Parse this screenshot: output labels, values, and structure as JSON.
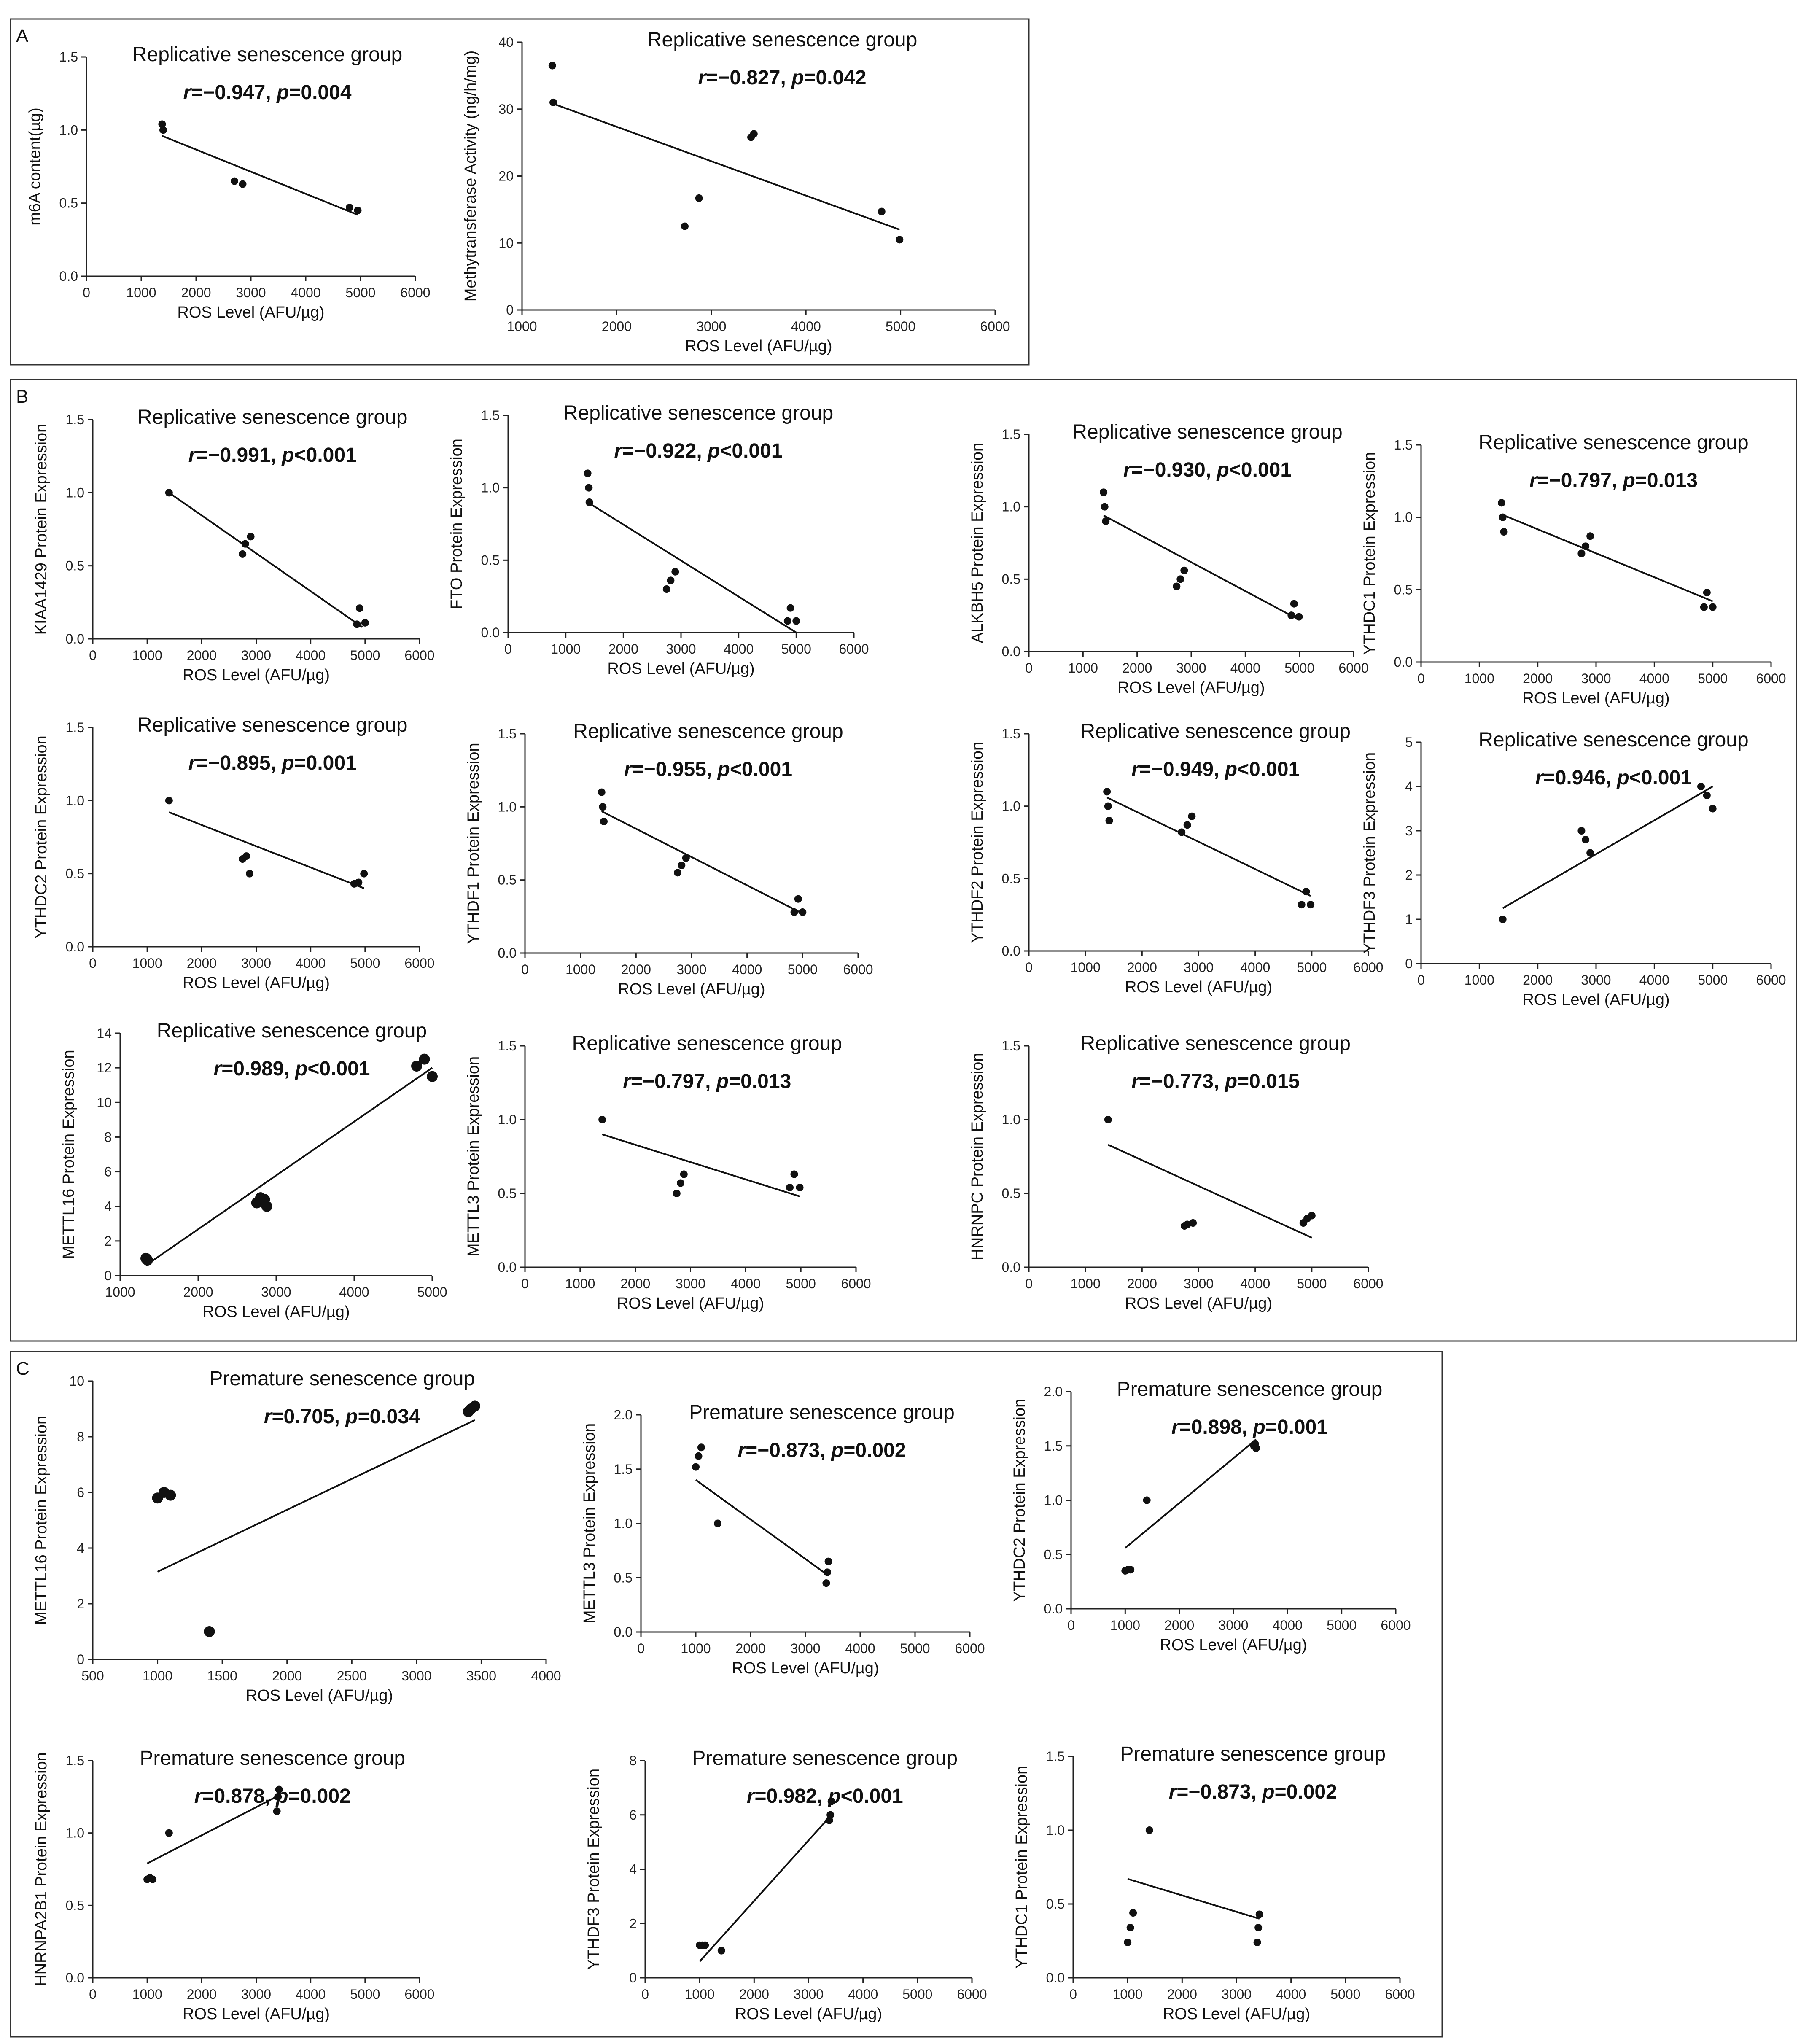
{
  "panels": [
    {
      "label": "A"
    },
    {
      "label": "B"
    },
    {
      "label": "C"
    }
  ],
  "chart_data": [
    {
      "id": "a1",
      "type": "scatter",
      "panel": "A",
      "title": "Replicative senescence group",
      "r": "−0.947",
      "p": "p=0.004",
      "xlabel": "ROS Level (AFU/µg)",
      "ylabel": "m6A content(µg)",
      "xlim": [
        0,
        6000
      ],
      "ylim": [
        0,
        1.5
      ],
      "xticks": [
        0,
        1000,
        2000,
        3000,
        4000,
        5000,
        6000
      ],
      "yticks": [
        0,
        0.5,
        1.0,
        1.5
      ],
      "ytickfmt": 1,
      "x": [
        1380,
        1400,
        2700,
        2850,
        4800,
        4950
      ],
      "y": [
        1.04,
        1.0,
        0.65,
        0.63,
        0.47,
        0.45
      ],
      "fit": [
        [
          1380,
          0.96
        ],
        [
          4950,
          0.42
        ]
      ]
    },
    {
      "id": "a2",
      "type": "scatter",
      "panel": "A",
      "title": "Replicative senescence group",
      "r": "−0.827",
      "p": "p=0.042",
      "xlabel": "ROS Level (AFU/µg)",
      "ylabel": "Methytransferase Activity (ng/h/mg)",
      "xlim": [
        1000,
        6000
      ],
      "ylim": [
        0,
        40
      ],
      "xticks": [
        1000,
        2000,
        3000,
        4000,
        5000,
        6000
      ],
      "yticks": [
        0,
        10,
        20,
        30,
        40
      ],
      "ytickfmt": 0,
      "x": [
        1320,
        1330,
        2720,
        2870,
        3420,
        3450,
        4800,
        4990
      ],
      "y": [
        36.5,
        31,
        12.5,
        16.7,
        25.8,
        26.3,
        14.7,
        10.5
      ],
      "fit": [
        [
          1330,
          30.8
        ],
        [
          4990,
          12
        ]
      ]
    },
    {
      "id": "b1",
      "type": "scatter",
      "panel": "B",
      "title": "Replicative senescence group",
      "r": "−0.991",
      "p": "p<0.001",
      "xlabel": "ROS Level (AFU/µg)",
      "ylabel": "KIAA1429 Protein Expression",
      "xlim": [
        0,
        6000
      ],
      "ylim": [
        0,
        1.5
      ],
      "xticks": [
        0,
        1000,
        2000,
        3000,
        4000,
        5000,
        6000
      ],
      "yticks": [
        0,
        0.5,
        1.0,
        1.5
      ],
      "ytickfmt": 1,
      "x": [
        1400,
        2750,
        2800,
        2900,
        4850,
        4900,
        5000
      ],
      "y": [
        1.0,
        0.58,
        0.65,
        0.7,
        0.1,
        0.21,
        0.11
      ],
      "fit": [
        [
          1400,
          1.0
        ],
        [
          4950,
          0.08
        ]
      ]
    },
    {
      "id": "b2",
      "type": "scatter",
      "panel": "B",
      "title": "Replicative senescence group",
      "r": "−0.922",
      "p": "p<0.001",
      "xlabel": "ROS Level (AFU/µg)",
      "ylabel": "FTO Protein Expression",
      "xlim": [
        0,
        6000
      ],
      "ylim": [
        0,
        1.5
      ],
      "xticks": [
        0,
        1000,
        2000,
        3000,
        4000,
        5000,
        6000
      ],
      "yticks": [
        0,
        0.5,
        1.0,
        1.5
      ],
      "ytickfmt": 1,
      "x": [
        1380,
        1400,
        1410,
        2750,
        2820,
        2900,
        4850,
        4900,
        5000
      ],
      "y": [
        1.1,
        1.0,
        0.9,
        0.3,
        0.36,
        0.42,
        0.08,
        0.17,
        0.08
      ],
      "fit": [
        [
          1380,
          0.9
        ],
        [
          5000,
          0.0
        ]
      ]
    },
    {
      "id": "b3",
      "type": "scatter",
      "panel": "B",
      "title": "Replicative senescence group",
      "r": "−0.930",
      "p": "p<0.001",
      "xlabel": "ROS Level (AFU/µg)",
      "ylabel": "ALKBH5 Protein Expression",
      "xlim": [
        0,
        6000
      ],
      "ylim": [
        0,
        1.5
      ],
      "xticks": [
        0,
        1000,
        2000,
        3000,
        4000,
        5000,
        6000
      ],
      "yticks": [
        0,
        0.5,
        1.0,
        1.5
      ],
      "ytickfmt": 1,
      "x": [
        1380,
        1400,
        1420,
        2730,
        2800,
        2870,
        4850,
        4900,
        4990
      ],
      "y": [
        1.1,
        1.0,
        0.9,
        0.45,
        0.5,
        0.56,
        0.25,
        0.33,
        0.24
      ],
      "fit": [
        [
          1380,
          0.94
        ],
        [
          4990,
          0.22
        ]
      ]
    },
    {
      "id": "b4",
      "type": "scatter",
      "panel": "B",
      "title": "Replicative senescence group",
      "r": "−0.797",
      "p": "p=0.013",
      "xlabel": "ROS Level (AFU/µg)",
      "ylabel": "YTHDC1 Protein Expression",
      "xlim": [
        0,
        6000
      ],
      "ylim": [
        0,
        1.5
      ],
      "xticks": [
        0,
        1000,
        2000,
        3000,
        4000,
        5000,
        6000
      ],
      "yticks": [
        0,
        0.5,
        1.0,
        1.5
      ],
      "ytickfmt": 1,
      "x": [
        1380,
        1400,
        1420,
        2750,
        2820,
        2900,
        4850,
        4900,
        5000
      ],
      "y": [
        1.1,
        1.0,
        0.9,
        0.75,
        0.8,
        0.87,
        0.38,
        0.48,
        0.38
      ],
      "fit": [
        [
          1380,
          1.02
        ],
        [
          5000,
          0.42
        ]
      ]
    },
    {
      "id": "b5",
      "type": "scatter",
      "panel": "B",
      "title": "Replicative senescence group",
      "r": "−0.895",
      "p": "p=0.001",
      "xlabel": "ROS Level (AFU/µg)",
      "ylabel": "YTHDC2 Protein Expression",
      "xlim": [
        0,
        6000
      ],
      "ylim": [
        0,
        1.5
      ],
      "xticks": [
        0,
        1000,
        2000,
        3000,
        4000,
        5000,
        6000
      ],
      "yticks": [
        0,
        0.5,
        1.0,
        1.5
      ],
      "ytickfmt": 1,
      "x": [
        1400,
        2750,
        2820,
        2880,
        4800,
        4880,
        4980
      ],
      "y": [
        1.0,
        0.6,
        0.62,
        0.5,
        0.43,
        0.44,
        0.5
      ],
      "fit": [
        [
          1400,
          0.92
        ],
        [
          4980,
          0.4
        ]
      ]
    },
    {
      "id": "b6",
      "type": "scatter",
      "panel": "B",
      "title": "Replicative senescence group",
      "r": "−0.955",
      "p": "p<0.001",
      "xlabel": "ROS Level (AFU/µg)",
      "ylabel": "YTHDF1 Protein Expression",
      "xlim": [
        0,
        6000
      ],
      "ylim": [
        0,
        1.5
      ],
      "xticks": [
        0,
        1000,
        2000,
        3000,
        4000,
        5000,
        6000
      ],
      "yticks": [
        0,
        0.5,
        1.0,
        1.5
      ],
      "ytickfmt": 1,
      "x": [
        1380,
        1400,
        1420,
        2750,
        2820,
        2900,
        4850,
        4920,
        5000
      ],
      "y": [
        1.1,
        1.0,
        0.9,
        0.55,
        0.6,
        0.65,
        0.28,
        0.37,
        0.28
      ],
      "fit": [
        [
          1380,
          0.97
        ],
        [
          5000,
          0.27
        ]
      ]
    },
    {
      "id": "b7",
      "type": "scatter",
      "panel": "B",
      "title": "Replicative senescence group",
      "r": "−0.949",
      "p": "p<0.001",
      "xlabel": "ROS Level (AFU/µg)",
      "ylabel": "YTHDF2 Protein Expression",
      "xlim": [
        0,
        6000
      ],
      "ylim": [
        0,
        1.5
      ],
      "xticks": [
        0,
        1000,
        2000,
        3000,
        4000,
        5000,
        6000
      ],
      "yticks": [
        0,
        0.5,
        1.0,
        1.5
      ],
      "ytickfmt": 1,
      "x": [
        1380,
        1400,
        1420,
        2700,
        2800,
        2880,
        4820,
        4900,
        4980
      ],
      "y": [
        1.1,
        1.0,
        0.9,
        0.82,
        0.87,
        0.93,
        0.32,
        0.41,
        0.32
      ],
      "fit": [
        [
          1380,
          1.06
        ],
        [
          4980,
          0.38
        ]
      ]
    },
    {
      "id": "b8",
      "type": "scatter",
      "panel": "B",
      "title": "Replicative senescence group",
      "r": "0.946",
      "p": "p<0.001",
      "xlabel": "ROS Level (AFU/µg)",
      "ylabel": "YTHDF3 Protein Expression",
      "xlim": [
        0,
        6000
      ],
      "ylim": [
        0,
        5
      ],
      "xticks": [
        0,
        1000,
        2000,
        3000,
        4000,
        5000,
        6000
      ],
      "yticks": [
        0,
        1,
        2,
        3,
        4,
        5
      ],
      "ytickfmt": 0,
      "x": [
        1400,
        2750,
        2820,
        2900,
        4800,
        4900,
        5000
      ],
      "y": [
        1.0,
        3.0,
        2.8,
        2.5,
        4.0,
        3.8,
        3.5
      ],
      "fit": [
        [
          1400,
          1.25
        ],
        [
          5000,
          4.0
        ]
      ]
    },
    {
      "id": "b9",
      "type": "scatter",
      "panel": "B",
      "title": "Replicative senescence group",
      "r": "0.989",
      "p": "p<0.001",
      "xlabel": "ROS Level (AFU/µg)",
      "ylabel": "METTL16 Protein Expression",
      "xlim": [
        1000,
        5000
      ],
      "ylim": [
        0,
        14
      ],
      "xticks": [
        1000,
        2000,
        3000,
        4000,
        5000
      ],
      "yticks": [
        0,
        2,
        4,
        6,
        8,
        10,
        12,
        14
      ],
      "ytickfmt": 0,
      "x": [
        1330,
        1350,
        2750,
        2800,
        2850,
        2880,
        4800,
        4900,
        5000
      ],
      "y": [
        1.0,
        0.9,
        4.2,
        4.5,
        4.4,
        4.0,
        12.1,
        12.5,
        11.5
      ],
      "fit": [
        [
          1330,
          0.6
        ],
        [
          5000,
          12
        ]
      ]
    },
    {
      "id": "b10",
      "type": "scatter",
      "panel": "B",
      "title": "Replicative senescence group",
      "r": "−0.797",
      "p": "p=0.013",
      "xlabel": "ROS Level (AFU/µg)",
      "ylabel": "METTL3 Protein Expression",
      "xlim": [
        0,
        6000
      ],
      "ylim": [
        0,
        1.5
      ],
      "xticks": [
        0,
        1000,
        2000,
        3000,
        4000,
        5000,
        6000
      ],
      "yticks": [
        0,
        0.5,
        1.0,
        1.5
      ],
      "ytickfmt": 1,
      "x": [
        1400,
        2750,
        2820,
        2880,
        4800,
        4880,
        4980
      ],
      "y": [
        1.0,
        0.5,
        0.57,
        0.63,
        0.54,
        0.63,
        0.54
      ],
      "fit": [
        [
          1400,
          0.9
        ],
        [
          4980,
          0.48
        ]
      ]
    },
    {
      "id": "b11",
      "type": "scatter",
      "panel": "B",
      "title": "Replicative senescence group",
      "r": "−0.773",
      "p": "p=0.015",
      "xlabel": "ROS Level (AFU/µg)",
      "ylabel": "HNRNPC Protein Expression",
      "xlim": [
        0,
        6000
      ],
      "ylim": [
        0,
        1.5
      ],
      "xticks": [
        0,
        1000,
        2000,
        3000,
        4000,
        5000,
        6000
      ],
      "yticks": [
        0,
        0.5,
        1.0,
        1.5
      ],
      "ytickfmt": 1,
      "x": [
        1400,
        2750,
        2800,
        2900,
        4850,
        4920,
        5000
      ],
      "y": [
        1.0,
        0.28,
        0.29,
        0.3,
        0.3,
        0.33,
        0.35
      ],
      "fit": [
        [
          1400,
          0.83
        ],
        [
          5000,
          0.2
        ]
      ]
    },
    {
      "id": "c1",
      "type": "scatter",
      "panel": "C",
      "title": "Premature senescence group",
      "r": "0.705",
      "p": "p=0.034",
      "xlabel": "ROS Level (AFU/µg)",
      "ylabel": "METTL16 Protein Expression",
      "xlim": [
        500,
        4000
      ],
      "ylim": [
        0,
        10
      ],
      "xticks": [
        500,
        1000,
        1500,
        2000,
        2500,
        3000,
        3500,
        4000
      ],
      "yticks": [
        0,
        2,
        4,
        6,
        8,
        10
      ],
      "ytickfmt": 0,
      "x": [
        1000,
        1050,
        1100,
        1400,
        3400,
        3420,
        3450
      ],
      "y": [
        5.8,
        6.0,
        5.9,
        1.0,
        8.9,
        9.0,
        9.1
      ],
      "fit": [
        [
          1000,
          3.15
        ],
        [
          3450,
          8.6
        ]
      ]
    },
    {
      "id": "c2",
      "type": "scatter",
      "panel": "C",
      "title": "Premature senescence group",
      "r": "−0.873",
      "p": "p=0.002",
      "xlabel": "ROS Level (AFU/µg)",
      "ylabel": "METTL3 Protein Expression",
      "xlim": [
        0,
        6000
      ],
      "ylim": [
        0,
        2.0
      ],
      "xticks": [
        0,
        1000,
        2000,
        3000,
        4000,
        5000,
        6000
      ],
      "yticks": [
        0,
        0.5,
        1.0,
        1.5,
        2.0
      ],
      "ytickfmt": 1,
      "x": [
        1000,
        1050,
        1100,
        1400,
        3380,
        3400,
        3420
      ],
      "y": [
        1.52,
        1.62,
        1.7,
        1.0,
        0.45,
        0.55,
        0.65
      ],
      "fit": [
        [
          1000,
          1.4
        ],
        [
          3420,
          0.52
        ]
      ]
    },
    {
      "id": "c3",
      "type": "scatter",
      "panel": "C",
      "title": "Premature senescence group",
      "r": "0.898",
      "p": "p=0.001",
      "xlabel": "ROS Level (AFU/µg)",
      "ylabel": "YTHDC2 Protein Expression",
      "xlim": [
        0,
        6000
      ],
      "ylim": [
        0,
        2.0
      ],
      "xticks": [
        0,
        1000,
        2000,
        3000,
        4000,
        5000,
        6000
      ],
      "yticks": [
        0,
        0.5,
        1.0,
        1.5,
        2.0
      ],
      "ytickfmt": 1,
      "x": [
        1000,
        1050,
        1100,
        1400,
        3380,
        3400,
        3420
      ],
      "y": [
        0.35,
        0.36,
        0.36,
        1.0,
        1.5,
        1.52,
        1.48
      ],
      "fit": [
        [
          1000,
          0.56
        ],
        [
          3420,
          1.56
        ]
      ]
    },
    {
      "id": "c4",
      "type": "scatter",
      "panel": "C",
      "title": "Premature senescence group",
      "r": "0.878",
      "p": "p=0.002",
      "xlabel": "ROS Level (AFU/µg)",
      "ylabel": "HNRNPA2B1 Protein Expression",
      "xlim": [
        0,
        6000
      ],
      "ylim": [
        0,
        1.5
      ],
      "xticks": [
        0,
        1000,
        2000,
        3000,
        4000,
        5000,
        6000
      ],
      "yticks": [
        0,
        0.5,
        1.0,
        1.5
      ],
      "ytickfmt": 1,
      "x": [
        1000,
        1050,
        1100,
        1400,
        3380,
        3400,
        3420
      ],
      "y": [
        0.68,
        0.69,
        0.68,
        1.0,
        1.15,
        1.25,
        1.3
      ],
      "fit": [
        [
          1000,
          0.79
        ],
        [
          3420,
          1.26
        ]
      ]
    },
    {
      "id": "c5",
      "type": "scatter",
      "panel": "C",
      "title": "Premature senescence group",
      "r": "0.982",
      "p": "p<0.001",
      "xlabel": "ROS Level (AFU/µg)",
      "ylabel": "YTHDF3 Protein Expression",
      "xlim": [
        0,
        6000
      ],
      "ylim": [
        0,
        8
      ],
      "xticks": [
        0,
        1000,
        2000,
        3000,
        4000,
        5000,
        6000
      ],
      "yticks": [
        0,
        2,
        4,
        6,
        8
      ],
      "ytickfmt": 0,
      "x": [
        1000,
        1050,
        1100,
        1400,
        3380,
        3400,
        3420
      ],
      "y": [
        1.2,
        1.2,
        1.2,
        1.0,
        5.8,
        6.0,
        6.5
      ],
      "fit": [
        [
          1000,
          0.6
        ],
        [
          3420,
          6.0
        ]
      ]
    },
    {
      "id": "c6",
      "type": "scatter",
      "panel": "C",
      "title": "Premature senescence group",
      "r": "−0.873",
      "p": "p=0.002",
      "xlabel": "ROS Level (AFU/µg)",
      "ylabel": "YTHDC1 Protein Expression",
      "xlim": [
        0,
        6000
      ],
      "ylim": [
        0,
        1.5
      ],
      "xticks": [
        0,
        1000,
        2000,
        3000,
        4000,
        5000,
        6000
      ],
      "yticks": [
        0,
        0.5,
        1.0,
        1.5
      ],
      "ytickfmt": 1,
      "x": [
        1000,
        1050,
        1100,
        1400,
        3380,
        3400,
        3420
      ],
      "y": [
        0.24,
        0.34,
        0.44,
        1.0,
        0.24,
        0.34,
        0.43
      ],
      "fit": [
        [
          1000,
          0.67
        ],
        [
          3420,
          0.4
        ]
      ]
    }
  ]
}
